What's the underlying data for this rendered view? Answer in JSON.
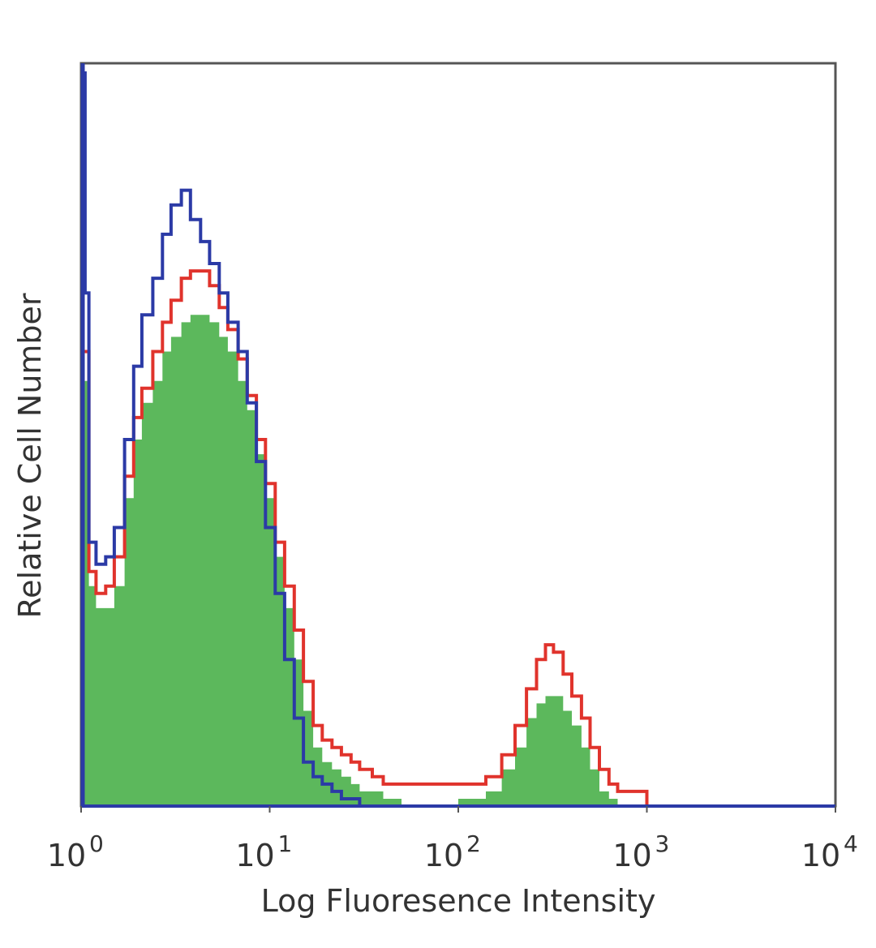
{
  "chart_data": {
    "type": "area",
    "xlabel": "Log Fluoresence Intensity",
    "ylabel": "Relative Cell Number",
    "xscale": "log",
    "xlim": [
      1,
      10000
    ],
    "ylim": [
      0,
      100
    ],
    "grid": false,
    "xticks": [
      {
        "value": 1,
        "base": "10",
        "exp": "0"
      },
      {
        "value": 10,
        "base": "10",
        "exp": "1"
      },
      {
        "value": 100,
        "base": "10",
        "exp": "2"
      },
      {
        "value": 1000,
        "base": "10",
        "exp": "3"
      },
      {
        "value": 10000,
        "base": "10",
        "exp": "4"
      }
    ],
    "series": [
      {
        "color": "#5cb85c",
        "style": "filled",
        "x": [
          1.0,
          1.1,
          1.2,
          1.35,
          1.5,
          1.7,
          1.9,
          2.1,
          2.4,
          2.7,
          3.0,
          3.4,
          3.8,
          4.3,
          4.8,
          5.4,
          6.0,
          6.8,
          7.6,
          8.5,
          9.5,
          10.7,
          12.0,
          13.5,
          15.1,
          17.0,
          19.0,
          21.4,
          24.0,
          27.0,
          30.0,
          35.0,
          40.0,
          50.0,
          70.0,
          100.0,
          140.0,
          170.0,
          200.0,
          230.0,
          260.0,
          290.0,
          320.0,
          360.0,
          400.0,
          450.0,
          500.0,
          560.0,
          630.0,
          700.0,
          1000.0,
          10000.0
        ],
        "values": [
          58,
          30,
          27,
          27,
          30,
          42,
          50,
          55,
          58,
          62,
          64,
          66,
          67,
          67,
          66,
          64,
          62,
          58,
          54,
          48,
          42,
          34,
          27,
          20,
          13,
          8,
          6,
          5,
          4,
          3,
          2,
          2,
          1,
          0,
          0,
          1,
          2,
          5,
          8,
          12,
          14,
          15,
          15,
          13,
          11,
          8,
          5,
          2,
          1,
          0,
          0,
          0
        ]
      },
      {
        "color": "#e0332c",
        "style": "line",
        "x": [
          1.0,
          1.1,
          1.2,
          1.35,
          1.5,
          1.7,
          1.9,
          2.1,
          2.4,
          2.7,
          3.0,
          3.4,
          3.8,
          4.3,
          4.8,
          5.4,
          6.0,
          6.8,
          7.6,
          8.5,
          9.5,
          10.7,
          12.0,
          13.5,
          15.1,
          17.0,
          19.0,
          21.4,
          24.0,
          27.0,
          30.0,
          35.0,
          40.0,
          50.0,
          70.0,
          100.0,
          140.0,
          170.0,
          200.0,
          230.0,
          260.0,
          290.0,
          320.0,
          360.0,
          400.0,
          450.0,
          500.0,
          560.0,
          630.0,
          700.0,
          800.0,
          1000.0,
          10000.0
        ],
        "values": [
          62,
          32,
          29,
          30,
          34,
          45,
          53,
          57,
          62,
          66,
          69,
          72,
          73,
          73,
          71,
          68,
          65,
          61,
          56,
          50,
          44,
          36,
          30,
          24,
          17,
          11,
          9,
          8,
          7,
          6,
          5,
          4,
          3,
          3,
          3,
          3,
          4,
          7,
          11,
          16,
          20,
          22,
          21,
          18,
          15,
          12,
          8,
          5,
          3,
          2,
          2,
          0,
          0
        ]
      },
      {
        "color": "#2b3aa6",
        "style": "line",
        "x": [
          1.0,
          1.05,
          1.1,
          1.2,
          1.35,
          1.5,
          1.7,
          1.9,
          2.1,
          2.4,
          2.7,
          3.0,
          3.4,
          3.8,
          4.3,
          4.8,
          5.4,
          6.0,
          6.8,
          7.6,
          8.5,
          9.5,
          10.7,
          12.0,
          13.5,
          15.1,
          17.0,
          19.0,
          21.4,
          24.0,
          27.0,
          30.0,
          35.0,
          40.0,
          50.0,
          10000.0
        ],
        "values": [
          100,
          70,
          36,
          33,
          34,
          38,
          50,
          60,
          67,
          72,
          78,
          82,
          84,
          80,
          77,
          74,
          70,
          66,
          62,
          55,
          47,
          38,
          29,
          20,
          12,
          6,
          4,
          3,
          2,
          1,
          1,
          0,
          0,
          0,
          0,
          0
        ]
      }
    ]
  }
}
